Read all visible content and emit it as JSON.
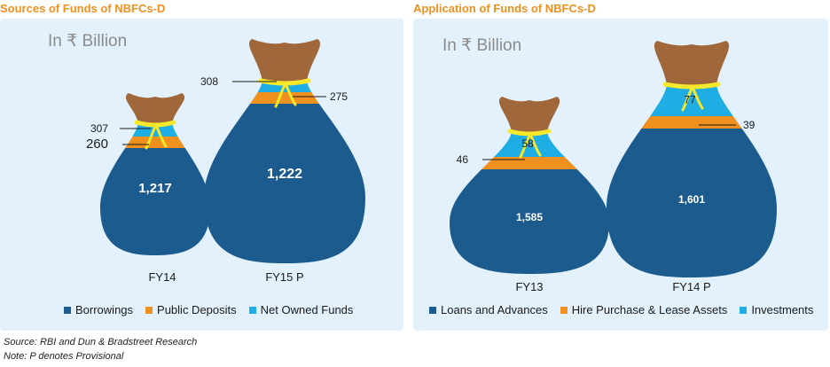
{
  "chart_data": [
    {
      "type": "bar",
      "title": "Sources of Funds of NBFCs-D",
      "unit_label": "In ₹ Billion",
      "categories": [
        "FY14",
        "FY15 P"
      ],
      "series": [
        {
          "name": "Borrowings",
          "values": [
            1217,
            1222
          ],
          "labels": [
            "1,217",
            "1,222"
          ],
          "color": "#1b5b8e"
        },
        {
          "name": "Public Deposits",
          "values": [
            260,
            275
          ],
          "labels": [
            "260",
            "275"
          ],
          "color": "#f0901e"
        },
        {
          "name": "Net Owned Funds",
          "values": [
            307,
            308
          ],
          "labels": [
            "307",
            "308"
          ],
          "color": "#1eaee4"
        }
      ],
      "legend_position": "bottom"
    },
    {
      "type": "bar",
      "title": "Application of Funds of NBFCs-D",
      "unit_label": "In ₹ Billion",
      "categories": [
        "FY13",
        "FY14 P"
      ],
      "series": [
        {
          "name": "Loans and Advances",
          "values": [
            1585,
            1601
          ],
          "labels": [
            "1,585",
            "1,601"
          ],
          "color": "#1b5b8e"
        },
        {
          "name": "Hire Purchase & Lease Assets",
          "values": [
            46,
            39
          ],
          "labels": [
            "46",
            "39"
          ],
          "color": "#f0901e"
        },
        {
          "name": "Investments",
          "values": [
            58,
            77
          ],
          "labels": [
            "58",
            "77"
          ],
          "color": "#1eaee4"
        }
      ],
      "legend_position": "bottom"
    }
  ],
  "colors": {
    "title": "#f0901e",
    "neck": "#a0673a",
    "tie": "#f6e82a",
    "background": "#e2f1fb"
  },
  "source_note": "Source: RBI and Dun & Bradstreet Research",
  "provisional_note": "Note: P denotes Provisional"
}
